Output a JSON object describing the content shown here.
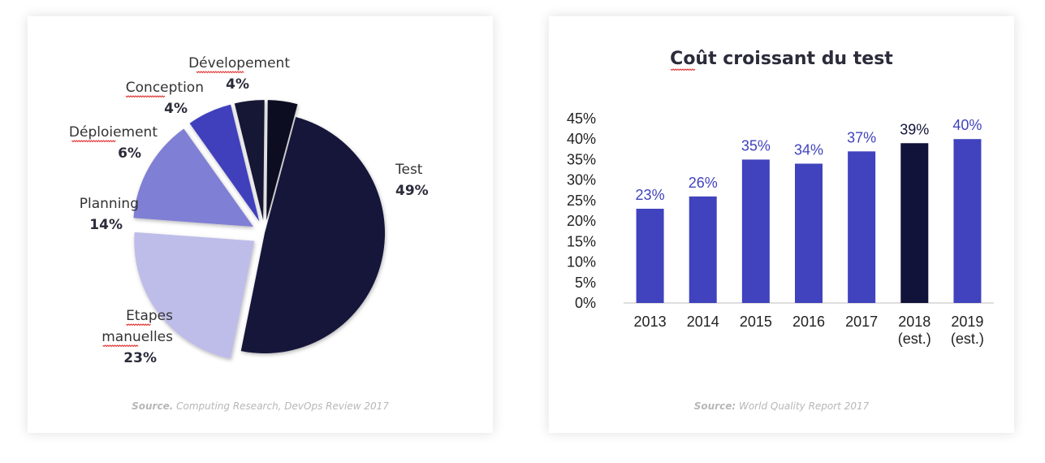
{
  "pie_card": {
    "source_prefix": "Source.",
    "source_text": "Computing Research, DevOps Review 2017"
  },
  "bar_card": {
    "source_prefix": "Source:",
    "source_text": "World Quality Report 2017"
  },
  "chart_data": [
    {
      "type": "pie",
      "title": "",
      "slices": [
        {
          "label_lines": [
            "Test"
          ],
          "value": 49,
          "pct_label": "49%",
          "color": "#12133a",
          "exploded": false
        },
        {
          "label_lines": [
            "Etapes",
            "manuelles"
          ],
          "value": 23,
          "pct_label": "23%",
          "color": "#bebde9",
          "exploded": true
        },
        {
          "label_lines": [
            "Planning"
          ],
          "value": 14,
          "pct_label": "14%",
          "color": "#7f7fd5",
          "exploded": true
        },
        {
          "label_lines": [
            "Déploiement"
          ],
          "value": 6,
          "pct_label": "6%",
          "color": "#3f41bd",
          "exploded": true
        },
        {
          "label_lines": [
            "Conception"
          ],
          "value": 4,
          "pct_label": "4%",
          "color": "#161634",
          "exploded": true
        },
        {
          "label_lines": [
            "Dévelopement"
          ],
          "value": 4,
          "pct_label": "4%",
          "color": "#0b0b24",
          "exploded": true
        }
      ]
    },
    {
      "type": "bar",
      "title": "Coût croissant du test",
      "categories": [
        [
          "2013"
        ],
        [
          "2014"
        ],
        [
          "2015"
        ],
        [
          "2016"
        ],
        [
          "2017"
        ],
        [
          "2018",
          "(est.)"
        ],
        [
          "2019",
          "(est.)"
        ]
      ],
      "values": [
        23,
        26,
        35,
        34,
        37,
        39,
        40
      ],
      "value_labels": [
        "23%",
        "26%",
        "35%",
        "34%",
        "37%",
        "39%",
        "40%"
      ],
      "bar_colors": [
        "#4043bd",
        "#4043bd",
        "#4043bd",
        "#4043bd",
        "#4043bd",
        "#12133a",
        "#4043bd"
      ],
      "label_colors": [
        "#4043bd",
        "#4043bd",
        "#4043bd",
        "#4043bd",
        "#4043bd",
        "#12133a",
        "#4043bd"
      ],
      "ylim": [
        0,
        45
      ],
      "yticks": [
        0,
        5,
        10,
        15,
        20,
        25,
        30,
        35,
        40,
        45
      ],
      "ytick_labels": [
        "0%",
        "5%",
        "10%",
        "15%",
        "20%",
        "25%",
        "30%",
        "35%",
        "40%",
        "45%"
      ],
      "grid": false,
      "xlabel": "",
      "ylabel": ""
    }
  ]
}
